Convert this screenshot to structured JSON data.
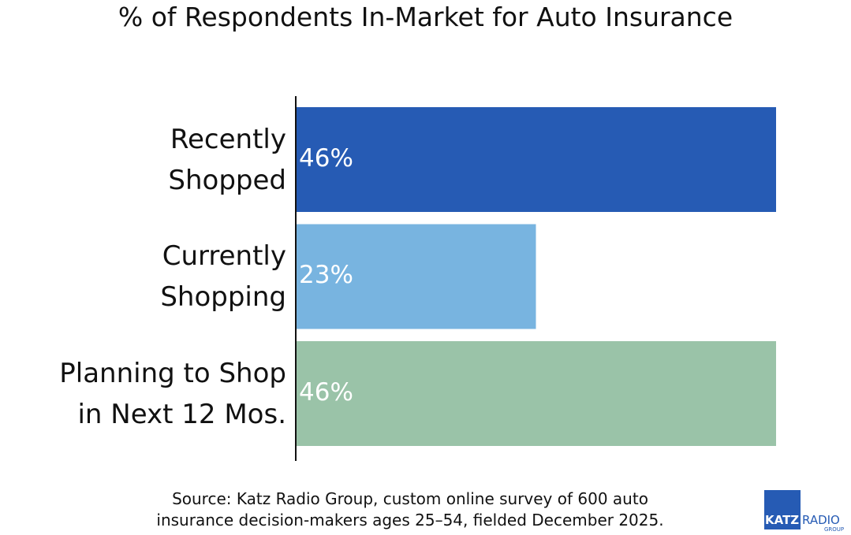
{
  "chart_data": {
    "type": "hbar",
    "title": "% of Respondents In-Market for Auto Insurance",
    "categories": [
      "Recently\nShopped",
      "Currently\nShopping",
      "Planning to Shop\nin Next 12 Mos."
    ],
    "values": [
      46,
      23,
      46
    ],
    "value_labels": [
      "46%",
      "23%",
      "46%"
    ],
    "colors": [
      "#265bb4",
      "#78b4e0",
      "#9ac3a8"
    ],
    "note": "Source: Katz Radio Group, custom online survey of 600 auto\ninsurance decision-makers ages 25–54, fielded December 2025."
  },
  "logo": {
    "brand": "KATZ",
    "word": "RADIO",
    "sub": "GROUP"
  }
}
